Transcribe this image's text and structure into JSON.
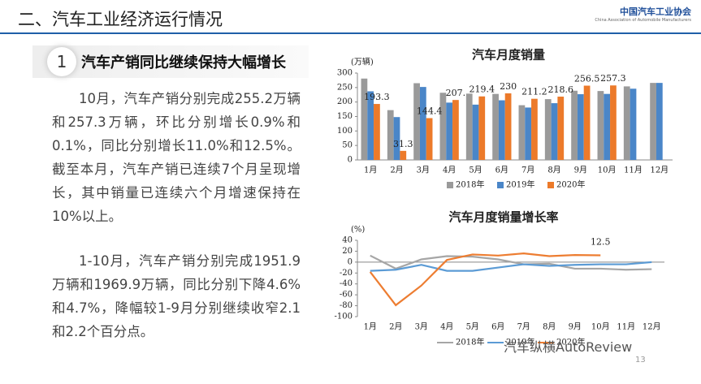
{
  "header": {
    "title": "二、汽车工业经济运行情况",
    "logo_cn": "中国汽车工业协会",
    "logo_en": "China Association of Automobile Manufacturers"
  },
  "section": {
    "number": "1",
    "heading": "汽车产销同比继续保持大幅增长"
  },
  "paragraphs": [
    "10月，汽车产销分别完成255.2万辆和257.3万辆，环比分别增长0.9%和0.1%，同比分别增长11.0%和12.5%。截至本月，汽车产销已连续7个月呈现增长，其中销量已连续六个月增速保持在10%以上。",
    "1-10月，汽车产销分别完成1951.9万辆和1969.9万辆，同比分别下降4.6%和4.7%，降幅较1-9月分别继续收窄2.1和2.2个百分点。"
  ],
  "chart_data": [
    {
      "type": "bar",
      "title": "汽车月度销量",
      "y_label": "(万辆)",
      "categories": [
        "1月",
        "2月",
        "3月",
        "4月",
        "5月",
        "6月",
        "7月",
        "8月",
        "9月",
        "10月",
        "11月",
        "12月"
      ],
      "ylim": [
        0,
        300
      ],
      "yticks": [
        0,
        50,
        100,
        150,
        200,
        250,
        300
      ],
      "series": [
        {
          "name": "2018年",
          "color": "#9a9a9a",
          "values": [
            281,
            172,
            265,
            232,
            229,
            228,
            189,
            210,
            239,
            238,
            254,
            266
          ]
        },
        {
          "name": "2019年",
          "color": "#4a86c8",
          "values": [
            237,
            148,
            252,
            198,
            191,
            206,
            181,
            196,
            227,
            228,
            246,
            266
          ]
        },
        {
          "name": "2020年",
          "color": "#ec7a2a",
          "values": [
            193.3,
            31.3,
            144.4,
            207,
            219.4,
            230,
            211.2,
            218.6,
            256.5,
            257.3,
            null,
            null
          ],
          "value_labels": [
            "193.3",
            "31.3",
            "144.4",
            "207.",
            "219.4",
            "230",
            "211.2",
            "218.6",
            "256.5",
            "257.3",
            null,
            null
          ]
        }
      ],
      "legend": "bottom"
    },
    {
      "type": "line",
      "title": "汽车月度销量增长率",
      "y_label": "(%)",
      "categories": [
        "1月",
        "2月",
        "3月",
        "4月",
        "5月",
        "6月",
        "7月",
        "8月",
        "9月",
        "10月",
        "11月",
        "12月"
      ],
      "ylim": [
        -100,
        40
      ],
      "yticks": [
        -100,
        -80,
        -60,
        -40,
        -20,
        0,
        20,
        40
      ],
      "series": [
        {
          "name": "2018年",
          "color": "#a6a6a6",
          "values": [
            12,
            -12,
            5,
            11,
            10,
            5,
            -4,
            -3,
            -12,
            -12,
            -14,
            -13
          ]
        },
        {
          "name": "2019年",
          "color": "#5b9bd5",
          "values": [
            -16,
            -14,
            -5,
            -16,
            -16,
            -10,
            -4,
            -7,
            -5,
            -4,
            -4,
            0
          ]
        },
        {
          "name": "2020年",
          "color": "#ed7d31",
          "values": [
            -18,
            -79,
            -43,
            4,
            14,
            12,
            16,
            11,
            13,
            12.5,
            null,
            null
          ],
          "value_labels": [
            null,
            null,
            null,
            null,
            null,
            null,
            null,
            null,
            null,
            "12.5",
            null,
            null
          ]
        }
      ],
      "legend": "bottom"
    }
  ],
  "footer": {
    "watermark": "汽车纵横AutoReview",
    "page": "13"
  }
}
